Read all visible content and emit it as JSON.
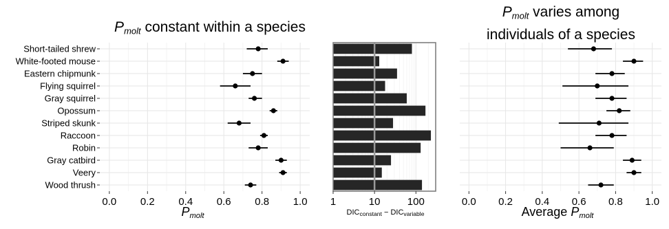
{
  "species": [
    "Short-tailed shrew",
    "White-footed mouse",
    "Eastern chipmunk",
    "Flying squirrel",
    "Gray squirrel",
    "Opossum",
    "Striped skunk",
    "Raccoon",
    "Robin",
    "Gray catbird",
    "Veery",
    "Wood thrush"
  ],
  "titles": {
    "left_var": "P",
    "left_sub": "molt",
    "left_rest": " constant within a species",
    "right_var": "P",
    "right_sub": "molt",
    "right_line1_rest": " varies among",
    "right_line2": "individuals of a species"
  },
  "axis_labels": {
    "left_var": "P",
    "left_sub": "molt",
    "middle_a": "DIC",
    "middle_a_sub": "constant",
    "middle_op": " − ",
    "middle_b": "DIC",
    "middle_b_sub": "variable",
    "right_prefix": "Average ",
    "right_var": "P",
    "right_sub": "molt"
  },
  "chart_data": [
    {
      "type": "scatter",
      "name": "constant",
      "y_categories_ref": "species",
      "xlim": [
        -0.05,
        1.05
      ],
      "x_ticks": [
        0.0,
        0.2,
        0.4,
        0.6,
        0.8,
        1.0
      ],
      "x_tick_labels": [
        "0.0",
        "0.2",
        "0.4",
        "0.6",
        "0.8",
        "1.0"
      ],
      "grid": true,
      "estimates": [
        0.78,
        0.91,
        0.75,
        0.66,
        0.76,
        0.86,
        0.68,
        0.81,
        0.78,
        0.9,
        0.91,
        0.74
      ],
      "lower": [
        0.72,
        0.88,
        0.7,
        0.58,
        0.73,
        0.84,
        0.62,
        0.79,
        0.73,
        0.87,
        0.89,
        0.71
      ],
      "upper": [
        0.83,
        0.94,
        0.8,
        0.74,
        0.8,
        0.88,
        0.74,
        0.83,
        0.83,
        0.93,
        0.93,
        0.77
      ]
    },
    {
      "type": "bar",
      "name": "DIC difference",
      "orientation": "horizontal",
      "y_categories_ref": "species",
      "scale": "log10",
      "xlim": [
        1,
        300
      ],
      "x_ticks": [
        1,
        10,
        100
      ],
      "x_tick_labels": [
        "1",
        "10",
        "100"
      ],
      "reference_line": 10,
      "values": [
        80,
        13,
        35,
        18,
        60,
        170,
        28,
        230,
        130,
        25,
        15,
        140
      ],
      "bar_color": "#262626",
      "grid": true
    },
    {
      "type": "scatter",
      "name": "variable",
      "y_categories_ref": "species",
      "xlim": [
        -0.05,
        1.05
      ],
      "x_ticks": [
        0.0,
        0.2,
        0.4,
        0.6,
        0.8,
        1.0
      ],
      "x_tick_labels": [
        "0.0",
        "0.2",
        "0.4",
        "0.6",
        "0.8",
        "1.0"
      ],
      "grid": true,
      "estimates": [
        0.68,
        0.9,
        0.78,
        0.7,
        0.78,
        0.82,
        0.71,
        0.78,
        0.66,
        0.89,
        0.9,
        0.72
      ],
      "lower": [
        0.54,
        0.84,
        0.69,
        0.51,
        0.69,
        0.75,
        0.49,
        0.69,
        0.5,
        0.84,
        0.86,
        0.65
      ],
      "upper": [
        0.78,
        0.95,
        0.85,
        0.87,
        0.86,
        0.88,
        0.87,
        0.86,
        0.79,
        0.94,
        0.94,
        0.79
      ]
    }
  ],
  "colors": {
    "point": "#000000",
    "grid_major": "#e6e6e6",
    "grid_minor": "#f4f4f4",
    "panel_border": "#7f7f7f",
    "tick_text": "#000000",
    "reference_line": "#9a9a9a"
  }
}
